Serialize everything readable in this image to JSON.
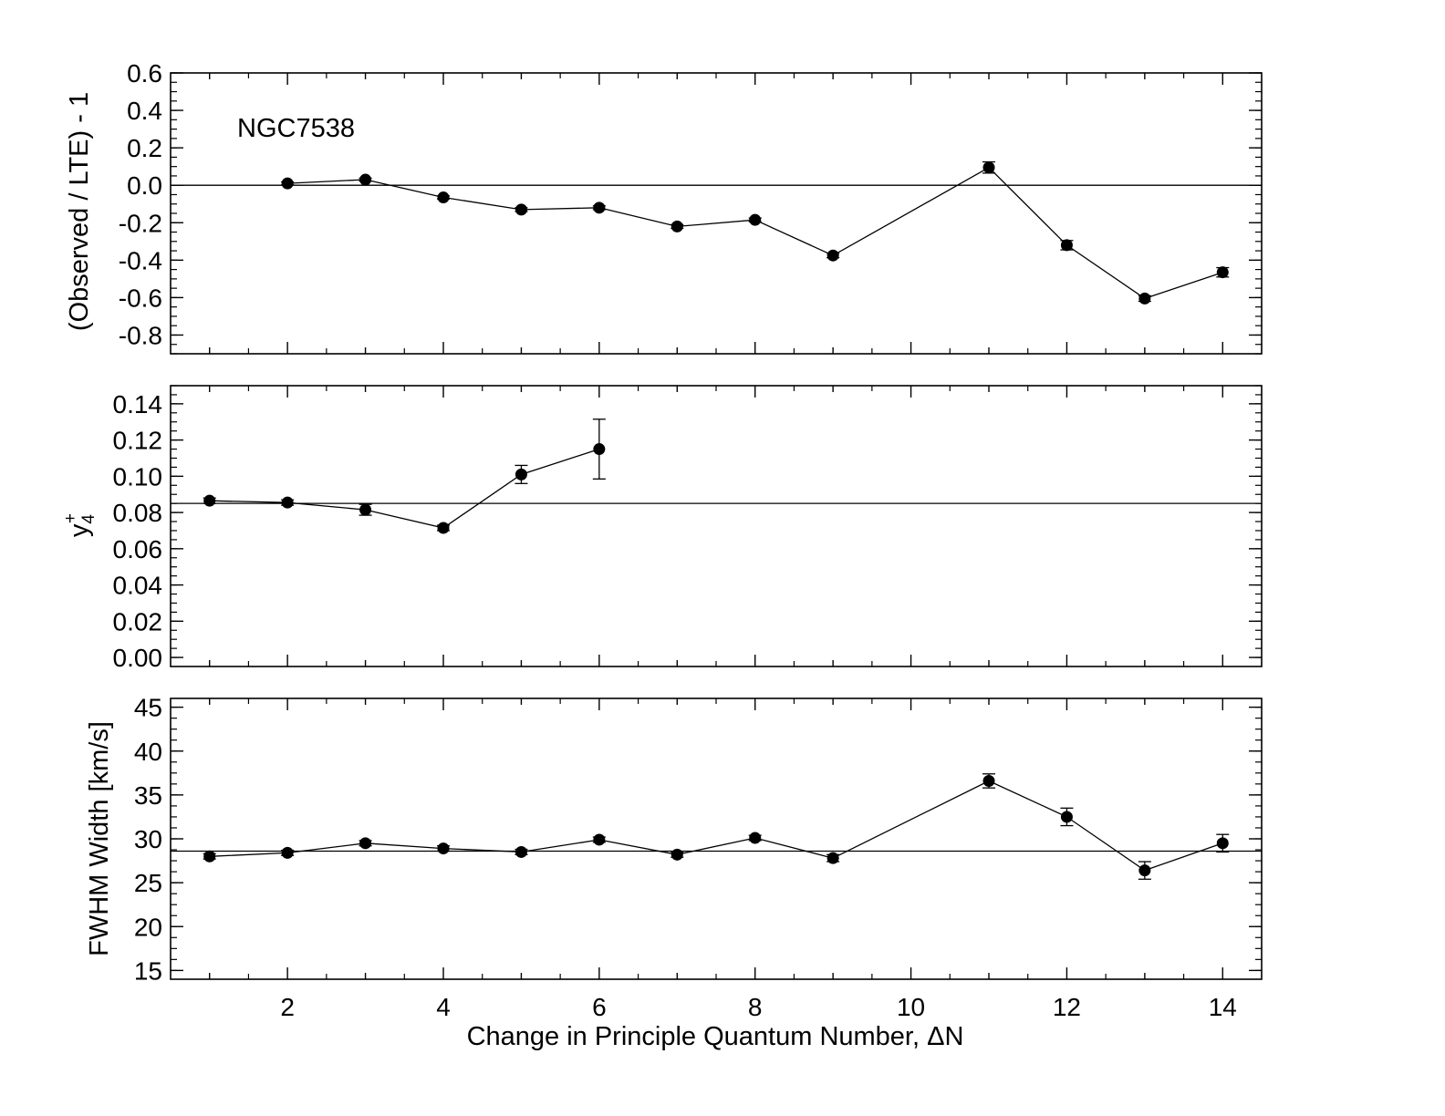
{
  "figure": {
    "xlabel": "Change in Principle Quantum Number, ΔN",
    "xlim": [
      0.5,
      14.5
    ],
    "xticks": [
      2,
      4,
      6,
      8,
      10,
      12,
      14
    ]
  },
  "chart_data": [
    {
      "type": "line",
      "panel": "top",
      "annotation": "NGC7538",
      "ylabel": "(Observed / LTE) - 1",
      "ylim": [
        -0.9,
        0.6
      ],
      "yticks": [
        0.6,
        0.4,
        0.2,
        0.0,
        -0.2,
        -0.4,
        -0.6,
        -0.8
      ],
      "ytick_labels": [
        "0.6",
        "0.4",
        "0.2",
        "0.0",
        "-0.2",
        "-0.4",
        "-0.6",
        "-0.8"
      ],
      "reference_line": 0.0,
      "x": [
        2,
        3,
        4,
        5,
        6,
        7,
        8,
        9,
        11,
        12,
        13,
        14
      ],
      "y": [
        0.01,
        0.03,
        -0.065,
        -0.13,
        -0.12,
        -0.22,
        -0.185,
        -0.375,
        0.095,
        -0.32,
        -0.605,
        -0.465
      ],
      "yerr": [
        0.008,
        0.008,
        0.008,
        0.01,
        0.01,
        0.01,
        0.01,
        0.012,
        0.03,
        0.025,
        0.015,
        0.025
      ]
    },
    {
      "type": "line",
      "panel": "middle",
      "ylabel": "y4+",
      "ylim": [
        -0.005,
        0.15
      ],
      "yticks": [
        0.14,
        0.12,
        0.1,
        0.08,
        0.06,
        0.04,
        0.02,
        0.0
      ],
      "ytick_labels": [
        "0.14",
        "0.12",
        "0.10",
        "0.08",
        "0.06",
        "0.04",
        "0.02",
        "0.00"
      ],
      "reference_line": 0.085,
      "x": [
        1,
        2,
        3,
        4,
        5,
        6
      ],
      "y": [
        0.0865,
        0.0855,
        0.0815,
        0.0715,
        0.101,
        0.115
      ],
      "yerr": [
        0.0015,
        0.0015,
        0.003,
        0.0015,
        0.005,
        0.0165
      ]
    },
    {
      "type": "line",
      "panel": "bottom",
      "ylabel": "FWHM Width [km/s]",
      "ylim": [
        14,
        46
      ],
      "yticks": [
        45,
        40,
        35,
        30,
        25,
        20,
        15
      ],
      "ytick_labels": [
        "45",
        "40",
        "35",
        "30",
        "25",
        "20",
        "15"
      ],
      "reference_line": 28.6,
      "x": [
        1,
        2,
        3,
        4,
        5,
        6,
        7,
        8,
        9,
        11,
        12,
        13,
        14
      ],
      "y": [
        28.0,
        28.4,
        29.5,
        28.9,
        28.5,
        29.9,
        28.2,
        30.1,
        27.8,
        36.6,
        32.5,
        26.4,
        29.5
      ],
      "yerr": [
        0.3,
        0.3,
        0.3,
        0.3,
        0.3,
        0.3,
        0.3,
        0.3,
        0.4,
        0.8,
        1.0,
        1.0,
        1.0
      ]
    }
  ]
}
